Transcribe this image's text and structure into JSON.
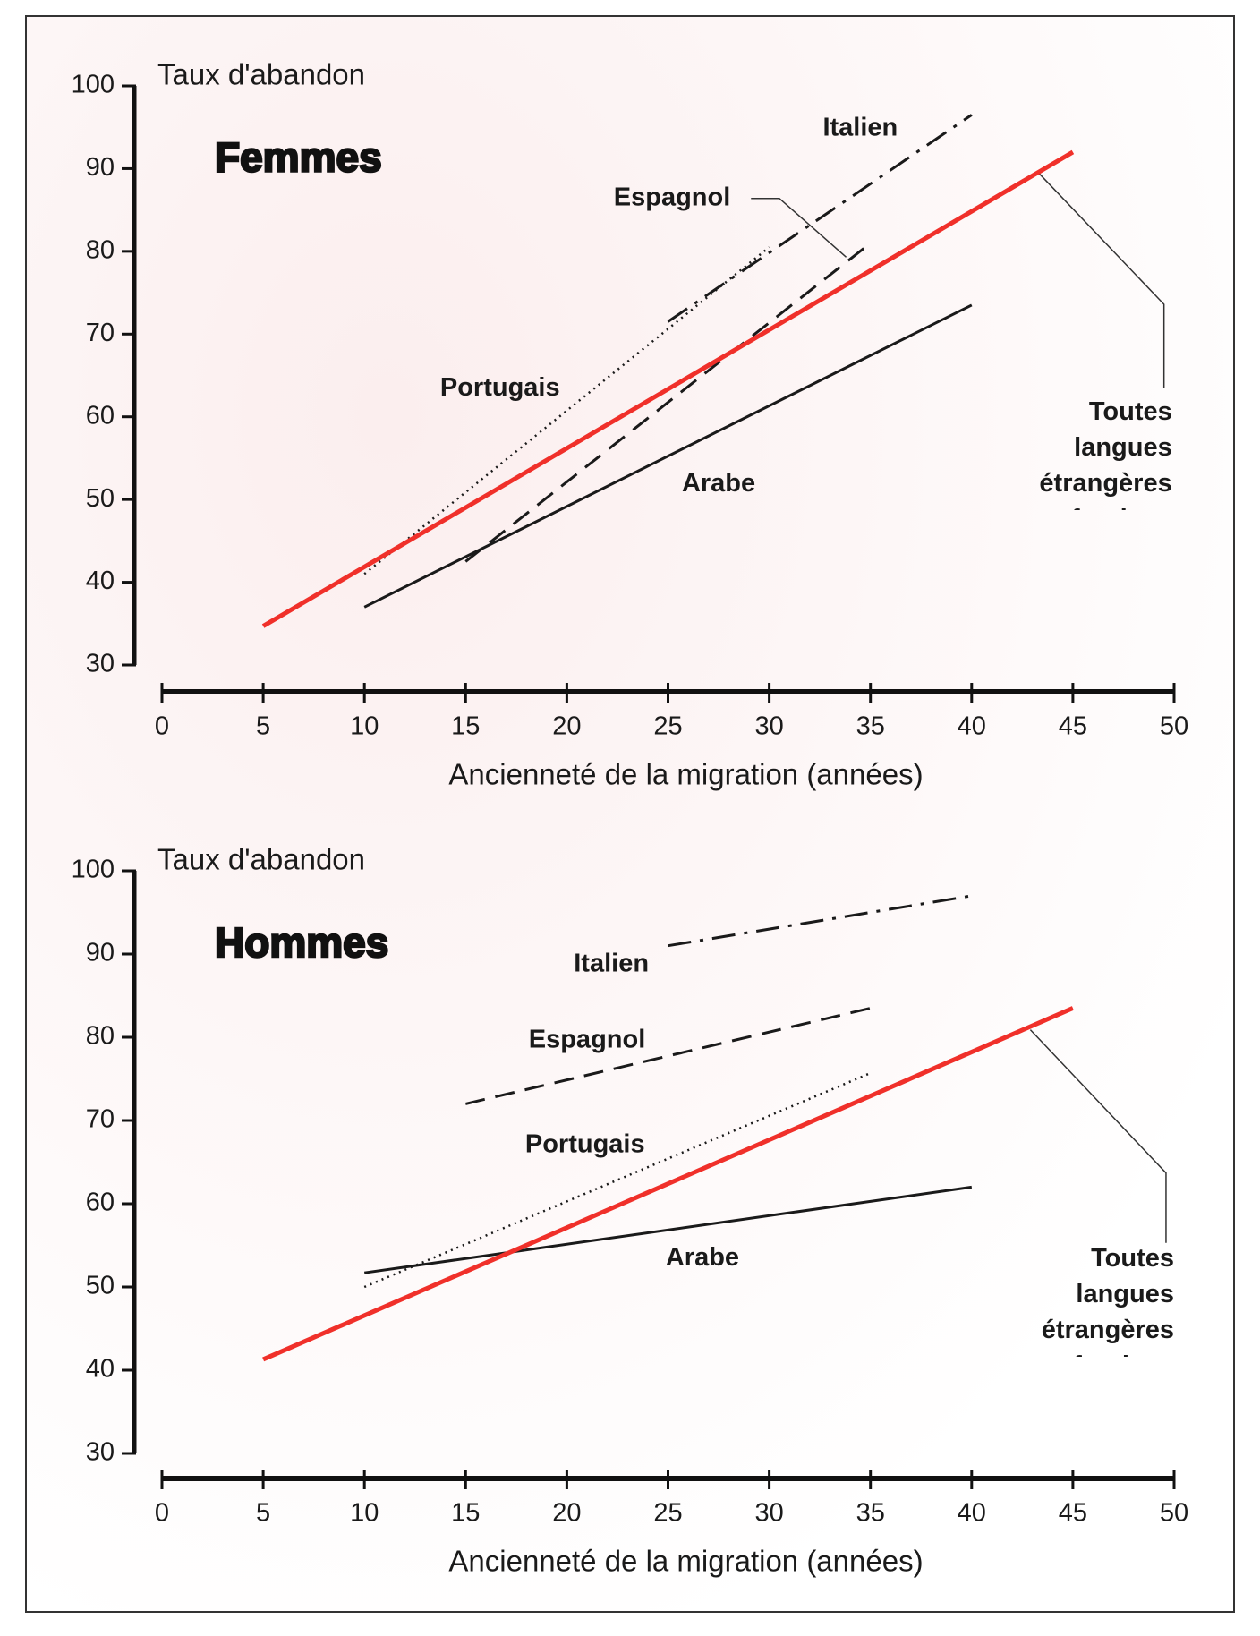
{
  "chart_data": [
    {
      "type": "line",
      "title": "Femmes",
      "y_label": "Taux d'abandon",
      "x_label": "Ancienneté de la migration (années)",
      "xlim": [
        0,
        50
      ],
      "xticks": [
        0,
        5,
        10,
        15,
        20,
        25,
        30,
        35,
        40,
        45,
        50
      ],
      "ylim": [
        30,
        100
      ],
      "yticks": [
        30,
        40,
        50,
        60,
        70,
        80,
        90,
        100
      ],
      "series": [
        {
          "name": "Italien",
          "color": "#1a1a1a",
          "linestyle": "dashdot",
          "x": [
            25,
            40
          ],
          "values": [
            71.5,
            96.5
          ]
        },
        {
          "name": "Espagnol",
          "color": "#1a1a1a",
          "linestyle": "dashed",
          "x": [
            15,
            35
          ],
          "values": [
            42.5,
            81
          ]
        },
        {
          "name": "Portugais",
          "color": "#1a1a1a",
          "linestyle": "dotted",
          "x": [
            10,
            30
          ],
          "values": [
            41,
            80.5
          ]
        },
        {
          "name": "Arabe",
          "color": "#1a1a1a",
          "linestyle": "solid",
          "x": [
            10,
            40
          ],
          "values": [
            37,
            73.5
          ]
        },
        {
          "name": "Toutes langues étrangères confondues",
          "color": "#f0302a",
          "linestyle": "solid",
          "x": [
            5,
            45
          ],
          "values": [
            34.7,
            92
          ]
        }
      ]
    },
    {
      "type": "line",
      "title": "Hommes",
      "y_label": "Taux d'abandon",
      "x_label": "Ancienneté de la migration (années)",
      "xlim": [
        0,
        50
      ],
      "xticks": [
        0,
        5,
        10,
        15,
        20,
        25,
        30,
        35,
        40,
        45,
        50
      ],
      "ylim": [
        30,
        100
      ],
      "yticks": [
        30,
        40,
        50,
        60,
        70,
        80,
        90,
        100
      ],
      "series": [
        {
          "name": "Italien",
          "color": "#1a1a1a",
          "linestyle": "dashdot",
          "x": [
            25,
            40
          ],
          "values": [
            91,
            97
          ]
        },
        {
          "name": "Espagnol",
          "color": "#1a1a1a",
          "linestyle": "dashed",
          "x": [
            15,
            35
          ],
          "values": [
            72,
            83.5
          ]
        },
        {
          "name": "Portugais",
          "color": "#1a1a1a",
          "linestyle": "dotted",
          "x": [
            10,
            35
          ],
          "values": [
            50,
            75.7
          ]
        },
        {
          "name": "Arabe",
          "color": "#1a1a1a",
          "linestyle": "solid",
          "x": [
            10,
            40
          ],
          "values": [
            51.7,
            62
          ]
        },
        {
          "name": "Toutes langues étrangères confondues",
          "color": "#f0302a",
          "linestyle": "solid",
          "x": [
            5,
            45
          ],
          "values": [
            41.3,
            83.5
          ]
        }
      ]
    }
  ]
}
